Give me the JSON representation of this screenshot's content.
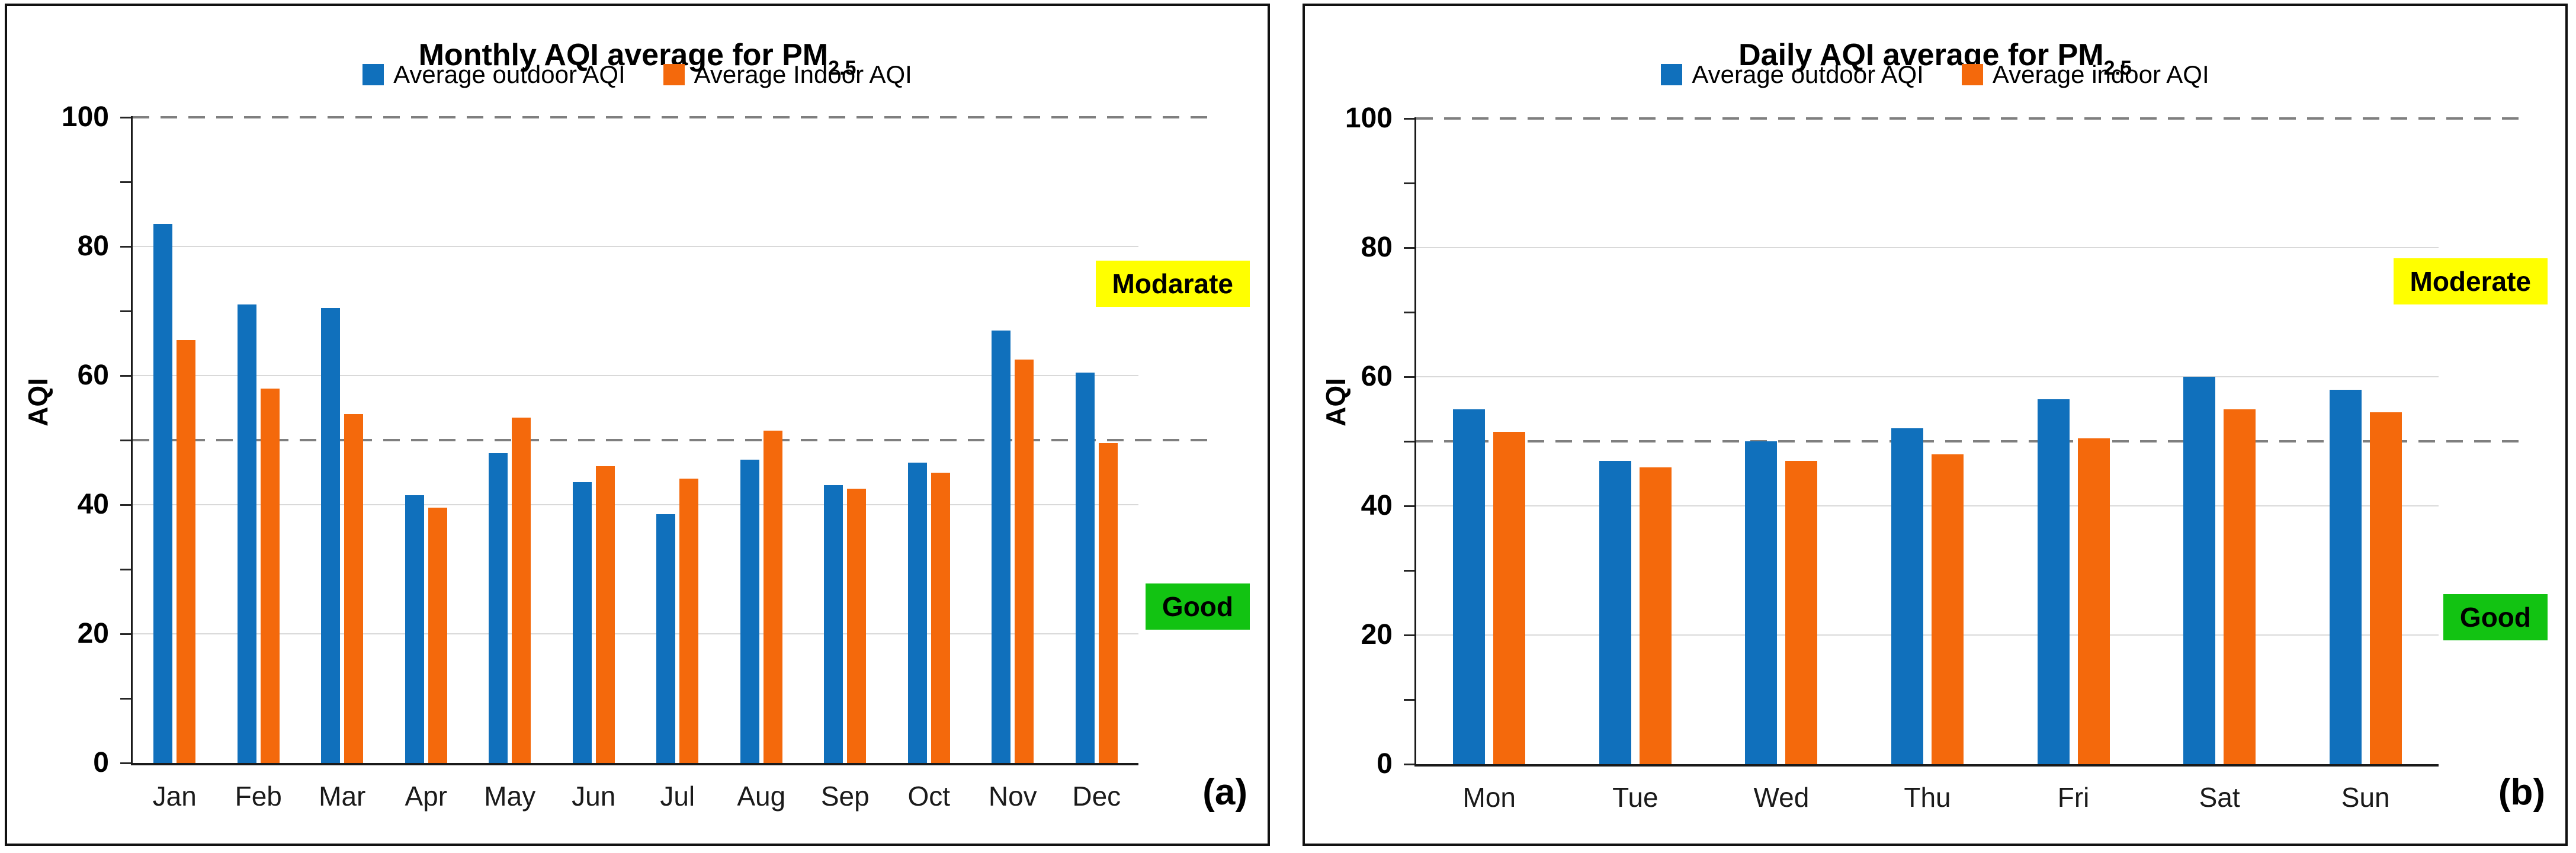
{
  "styles": {
    "outdoor_color": "#1070BC",
    "indoor_color": "#F4690C",
    "gridline_color": "#D9D9D9",
    "dashed_line_color": "#7F7F7F",
    "moderate_bg": "#FFFF00",
    "good_bg": "#12C312"
  },
  "chart_data": [
    {
      "type": "bar",
      "title_main": "Monthly AQI average for PM",
      "title_subscript": "2.5",
      "legend": [
        {
          "label": "Average outdoor AQI",
          "color": "#1070BC"
        },
        {
          "label": "Average Indoor AQI",
          "color": "#F4690C"
        }
      ],
      "ylabel": "AQI",
      "ylim": [
        0,
        100
      ],
      "yticks_labeled": [
        0,
        20,
        40,
        60,
        80,
        100
      ],
      "ytick_minor_step": 10,
      "gridlines": [
        20,
        40,
        60,
        80
      ],
      "dashed_reference_lines": [
        50,
        100
      ],
      "grid": "on",
      "legend_position": "top-center",
      "categories": [
        "Jan",
        "Feb",
        "Mar",
        "Apr",
        "May",
        "Jun",
        "Jul",
        "Aug",
        "Sep",
        "Oct",
        "Nov",
        "Dec"
      ],
      "series": [
        {
          "name": "Average outdoor AQI",
          "color": "#1070BC",
          "values": [
            83.5,
            71,
            70.5,
            41.5,
            48,
            43.5,
            38.5,
            47,
            43,
            46.5,
            67,
            60.5
          ]
        },
        {
          "name": "Average Indoor AQI",
          "color": "#F4690C",
          "values": [
            65.5,
            58,
            54,
            39.5,
            53.5,
            46,
            44,
            51.5,
            42.5,
            45,
            62.5,
            49.5
          ]
        }
      ],
      "zone_labels": [
        {
          "text": "Modarate",
          "background": "#FFFF00",
          "y_value": 73.5
        },
        {
          "text": "Good",
          "background": "#12C312",
          "y_value": 23.5
        }
      ],
      "panel_label": "(a)"
    },
    {
      "type": "bar",
      "title_main": "Daily AQI average for PM",
      "title_subscript": "2.5",
      "legend": [
        {
          "label": "Average outdoor AQI",
          "color": "#1070BC"
        },
        {
          "label": "Average indoor AQI",
          "color": "#F4690C"
        }
      ],
      "ylabel": "AQI",
      "ylim": [
        0,
        100
      ],
      "yticks_labeled": [
        0,
        20,
        40,
        60,
        80,
        100
      ],
      "ytick_minor_step": 10,
      "gridlines": [
        20,
        40,
        60,
        80
      ],
      "dashed_reference_lines": [
        50,
        100
      ],
      "grid": "on",
      "legend_position": "top-center",
      "categories": [
        "Mon",
        "Tue",
        "Wed",
        "Thu",
        "Fri",
        "Sat",
        "Sun"
      ],
      "series": [
        {
          "name": "Average outdoor AQI",
          "color": "#1070BC",
          "values": [
            55,
            47,
            50,
            52,
            56.5,
            60,
            58
          ]
        },
        {
          "name": "Average indoor AQI",
          "color": "#F4690C",
          "values": [
            51.5,
            46,
            47,
            48,
            50.5,
            55,
            54.5
          ]
        }
      ],
      "zone_labels": [
        {
          "text": "Moderate",
          "background": "#FFFF00",
          "y_value": 74
        },
        {
          "text": "Good",
          "background": "#12C312",
          "y_value": 22
        }
      ],
      "panel_label": "(b)"
    }
  ]
}
